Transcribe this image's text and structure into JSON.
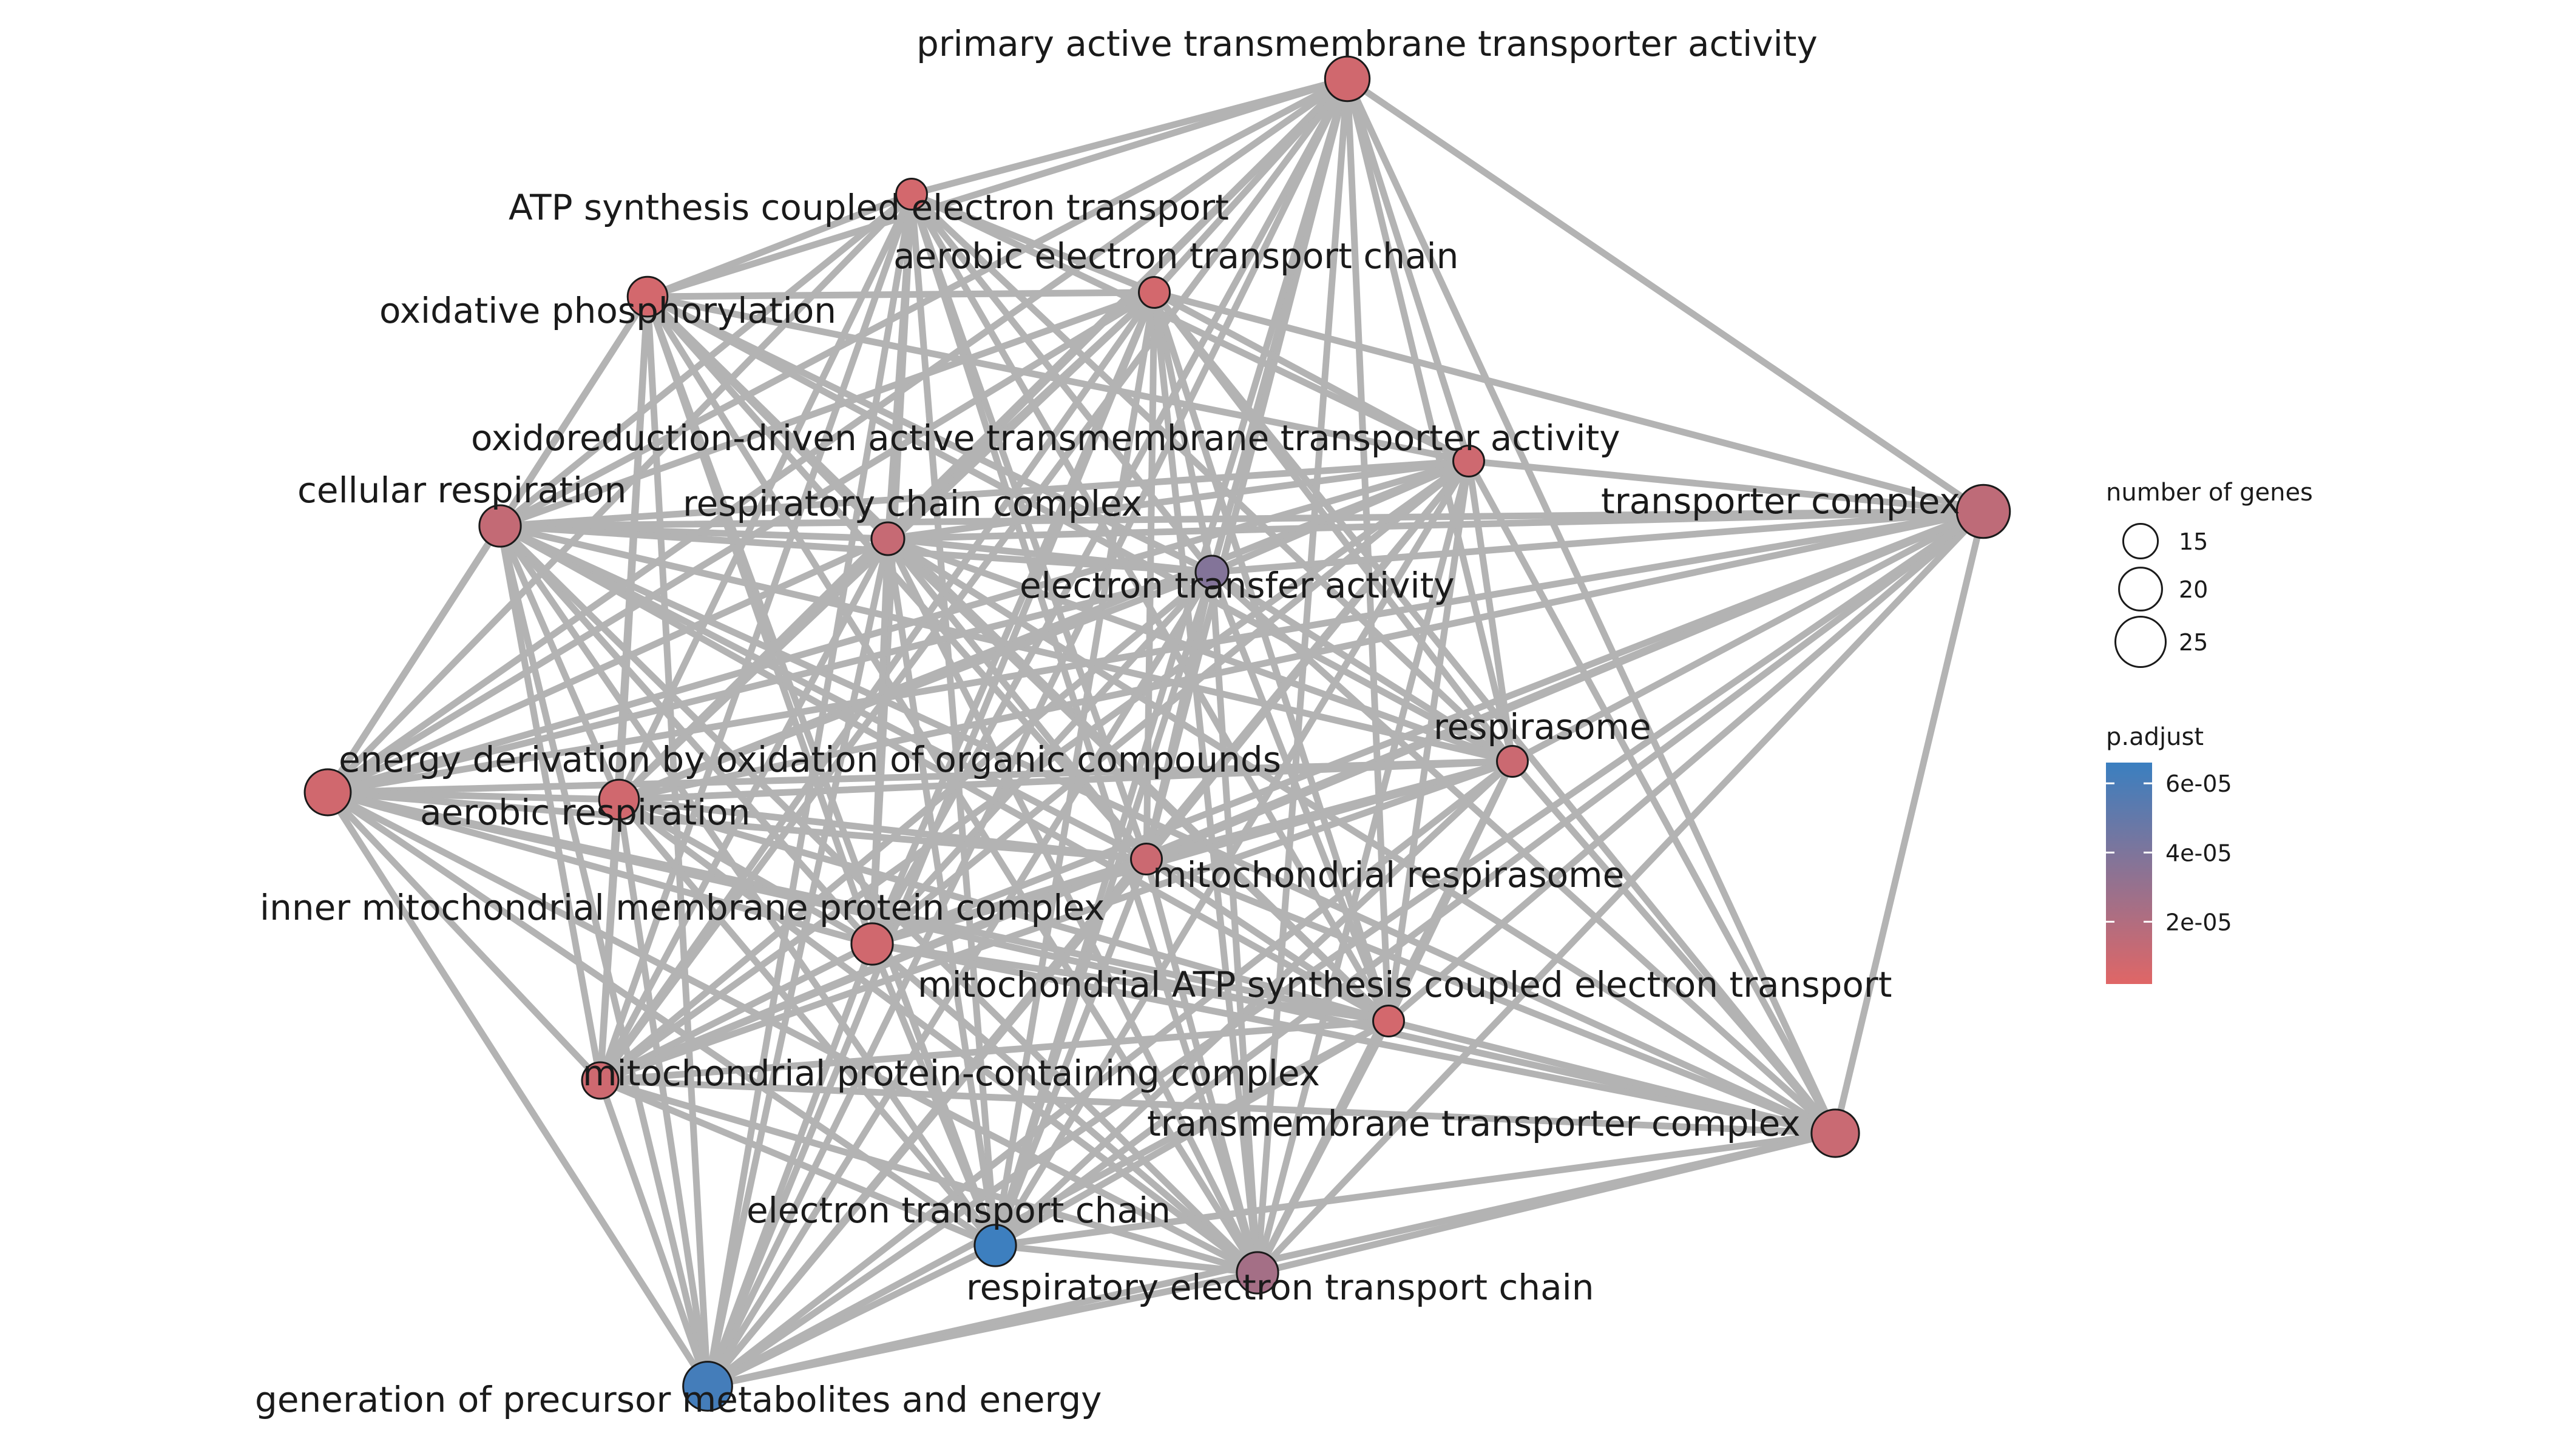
{
  "network": {
    "nodes": [
      {
        "id": "patta",
        "label": "primary active transmembrane transporter activity",
        "genes": 21,
        "p_adjust": 8e-06
      },
      {
        "id": "atpsyn",
        "label": "ATP synthesis coupled electron transport",
        "genes": 13,
        "p_adjust": 7e-06
      },
      {
        "id": "aetc",
        "label": "aerobic electron transport chain",
        "genes": 13,
        "p_adjust": 7e-06
      },
      {
        "id": "oxphos",
        "label": "oxidative phosphorylation",
        "genes": 18,
        "p_adjust": 7e-06
      },
      {
        "id": "odat",
        "label": "oxidoreduction-driven active transmembrane transporter activity",
        "genes": 13,
        "p_adjust": 9e-06
      },
      {
        "id": "cellresp",
        "label": "cellular respiration",
        "genes": 19,
        "p_adjust": 1.3e-05
      },
      {
        "id": "rcc",
        "label": "respiratory chain complex",
        "genes": 14,
        "p_adjust": 1.2e-05
      },
      {
        "id": "transcx",
        "label": "transporter complex",
        "genes": 27,
        "p_adjust": 1.5e-05
      },
      {
        "id": "eta",
        "label": "electron transfer activity",
        "genes": 14,
        "p_adjust": 3.8e-05
      },
      {
        "id": "respirasome",
        "label": "respirasome",
        "genes": 13,
        "p_adjust": 1e-05
      },
      {
        "id": "edoc",
        "label": "energy derivation by oxidation of organic compounds",
        "genes": 22,
        "p_adjust": 8e-06
      },
      {
        "id": "aeresp",
        "label": "aerobic respiration",
        "genes": 18,
        "p_adjust": 8e-06
      },
      {
        "id": "mitoresp",
        "label": "mitochondrial respirasome",
        "genes": 13,
        "p_adjust": 1e-05
      },
      {
        "id": "immpc",
        "label": "inner mitochondrial membrane protein complex",
        "genes": 19,
        "p_adjust": 8e-06
      },
      {
        "id": "mascet",
        "label": "mitochondrial ATP synthesis coupled electron transport",
        "genes": 13,
        "p_adjust": 7e-06
      },
      {
        "id": "mpcc",
        "label": "mitochondrial protein-containing complex",
        "genes": 16,
        "p_adjust": 9e-06
      },
      {
        "id": "tmtc",
        "label": "transmembrane transporter complex",
        "genes": 23,
        "p_adjust": 1.1e-05
      },
      {
        "id": "etc",
        "label": "electron transport chain",
        "genes": 19,
        "p_adjust": 6.5e-05
      },
      {
        "id": "retc",
        "label": "respiratory electron transport chain",
        "genes": 19,
        "p_adjust": 2.5e-05
      },
      {
        "id": "gpme",
        "label": "generation of precursor metabolites and energy",
        "genes": 24,
        "p_adjust": 6.2e-05
      }
    ],
    "edges": [
      [
        "patta",
        "atpsyn"
      ],
      [
        "patta",
        "aetc"
      ],
      [
        "patta",
        "oxphos"
      ],
      [
        "patta",
        "odat"
      ],
      [
        "patta",
        "cellresp"
      ],
      [
        "patta",
        "rcc"
      ],
      [
        "patta",
        "transcx"
      ],
      [
        "patta",
        "eta"
      ],
      [
        "patta",
        "respirasome"
      ],
      [
        "patta",
        "edoc"
      ],
      [
        "patta",
        "aeresp"
      ],
      [
        "patta",
        "mitoresp"
      ],
      [
        "patta",
        "immpc"
      ],
      [
        "patta",
        "mascet"
      ],
      [
        "patta",
        "mpcc"
      ],
      [
        "patta",
        "tmtc"
      ],
      [
        "patta",
        "etc"
      ],
      [
        "patta",
        "retc"
      ],
      [
        "patta",
        "gpme"
      ],
      [
        "atpsyn",
        "aetc"
      ],
      [
        "atpsyn",
        "oxphos"
      ],
      [
        "atpsyn",
        "odat"
      ],
      [
        "atpsyn",
        "cellresp"
      ],
      [
        "atpsyn",
        "rcc"
      ],
      [
        "atpsyn",
        "eta"
      ],
      [
        "atpsyn",
        "respirasome"
      ],
      [
        "atpsyn",
        "edoc"
      ],
      [
        "atpsyn",
        "aeresp"
      ],
      [
        "atpsyn",
        "mitoresp"
      ],
      [
        "atpsyn",
        "immpc"
      ],
      [
        "atpsyn",
        "mascet"
      ],
      [
        "atpsyn",
        "mpcc"
      ],
      [
        "atpsyn",
        "etc"
      ],
      [
        "atpsyn",
        "retc"
      ],
      [
        "atpsyn",
        "gpme"
      ],
      [
        "aetc",
        "oxphos"
      ],
      [
        "aetc",
        "odat"
      ],
      [
        "aetc",
        "cellresp"
      ],
      [
        "aetc",
        "rcc"
      ],
      [
        "aetc",
        "eta"
      ],
      [
        "aetc",
        "respirasome"
      ],
      [
        "aetc",
        "edoc"
      ],
      [
        "aetc",
        "aeresp"
      ],
      [
        "aetc",
        "mitoresp"
      ],
      [
        "aetc",
        "immpc"
      ],
      [
        "aetc",
        "mascet"
      ],
      [
        "aetc",
        "mpcc"
      ],
      [
        "aetc",
        "tmtc"
      ],
      [
        "aetc",
        "etc"
      ],
      [
        "aetc",
        "retc"
      ],
      [
        "aetc",
        "gpme"
      ],
      [
        "aetc",
        "transcx"
      ],
      [
        "oxphos",
        "odat"
      ],
      [
        "oxphos",
        "cellresp"
      ],
      [
        "oxphos",
        "rcc"
      ],
      [
        "oxphos",
        "eta"
      ],
      [
        "oxphos",
        "respirasome"
      ],
      [
        "oxphos",
        "edoc"
      ],
      [
        "oxphos",
        "aeresp"
      ],
      [
        "oxphos",
        "mitoresp"
      ],
      [
        "oxphos",
        "immpc"
      ],
      [
        "oxphos",
        "mascet"
      ],
      [
        "oxphos",
        "mpcc"
      ],
      [
        "oxphos",
        "etc"
      ],
      [
        "oxphos",
        "retc"
      ],
      [
        "oxphos",
        "gpme"
      ],
      [
        "odat",
        "cellresp"
      ],
      [
        "odat",
        "rcc"
      ],
      [
        "odat",
        "transcx"
      ],
      [
        "odat",
        "eta"
      ],
      [
        "odat",
        "respirasome"
      ],
      [
        "odat",
        "edoc"
      ],
      [
        "odat",
        "aeresp"
      ],
      [
        "odat",
        "mitoresp"
      ],
      [
        "odat",
        "immpc"
      ],
      [
        "odat",
        "mascet"
      ],
      [
        "odat",
        "mpcc"
      ],
      [
        "odat",
        "tmtc"
      ],
      [
        "odat",
        "etc"
      ],
      [
        "odat",
        "retc"
      ],
      [
        "odat",
        "gpme"
      ],
      [
        "cellresp",
        "rcc"
      ],
      [
        "cellresp",
        "transcx"
      ],
      [
        "cellresp",
        "eta"
      ],
      [
        "cellresp",
        "respirasome"
      ],
      [
        "cellresp",
        "edoc"
      ],
      [
        "cellresp",
        "aeresp"
      ],
      [
        "cellresp",
        "mitoresp"
      ],
      [
        "cellresp",
        "immpc"
      ],
      [
        "cellresp",
        "mascet"
      ],
      [
        "cellresp",
        "mpcc"
      ],
      [
        "cellresp",
        "tmtc"
      ],
      [
        "cellresp",
        "etc"
      ],
      [
        "cellresp",
        "retc"
      ],
      [
        "cellresp",
        "gpme"
      ],
      [
        "rcc",
        "transcx"
      ],
      [
        "rcc",
        "eta"
      ],
      [
        "rcc",
        "respirasome"
      ],
      [
        "rcc",
        "edoc"
      ],
      [
        "rcc",
        "aeresp"
      ],
      [
        "rcc",
        "mitoresp"
      ],
      [
        "rcc",
        "immpc"
      ],
      [
        "rcc",
        "mascet"
      ],
      [
        "rcc",
        "mpcc"
      ],
      [
        "rcc",
        "tmtc"
      ],
      [
        "rcc",
        "etc"
      ],
      [
        "rcc",
        "retc"
      ],
      [
        "rcc",
        "gpme"
      ],
      [
        "transcx",
        "eta"
      ],
      [
        "transcx",
        "respirasome"
      ],
      [
        "transcx",
        "edoc"
      ],
      [
        "transcx",
        "aeresp"
      ],
      [
        "transcx",
        "mitoresp"
      ],
      [
        "transcx",
        "immpc"
      ],
      [
        "transcx",
        "mascet"
      ],
      [
        "transcx",
        "mpcc"
      ],
      [
        "transcx",
        "tmtc"
      ],
      [
        "transcx",
        "etc"
      ],
      [
        "transcx",
        "retc"
      ],
      [
        "transcx",
        "gpme"
      ],
      [
        "eta",
        "respirasome"
      ],
      [
        "eta",
        "edoc"
      ],
      [
        "eta",
        "aeresp"
      ],
      [
        "eta",
        "mitoresp"
      ],
      [
        "eta",
        "immpc"
      ],
      [
        "eta",
        "mascet"
      ],
      [
        "eta",
        "mpcc"
      ],
      [
        "eta",
        "tmtc"
      ],
      [
        "eta",
        "etc"
      ],
      [
        "eta",
        "retc"
      ],
      [
        "eta",
        "gpme"
      ],
      [
        "respirasome",
        "edoc"
      ],
      [
        "respirasome",
        "aeresp"
      ],
      [
        "respirasome",
        "mitoresp"
      ],
      [
        "respirasome",
        "immpc"
      ],
      [
        "respirasome",
        "mascet"
      ],
      [
        "respirasome",
        "mpcc"
      ],
      [
        "respirasome",
        "tmtc"
      ],
      [
        "respirasome",
        "etc"
      ],
      [
        "respirasome",
        "retc"
      ],
      [
        "respirasome",
        "gpme"
      ],
      [
        "edoc",
        "aeresp"
      ],
      [
        "edoc",
        "mitoresp"
      ],
      [
        "edoc",
        "immpc"
      ],
      [
        "edoc",
        "mascet"
      ],
      [
        "edoc",
        "mpcc"
      ],
      [
        "edoc",
        "tmtc"
      ],
      [
        "edoc",
        "etc"
      ],
      [
        "edoc",
        "retc"
      ],
      [
        "edoc",
        "gpme"
      ],
      [
        "aeresp",
        "mitoresp"
      ],
      [
        "aeresp",
        "immpc"
      ],
      [
        "aeresp",
        "mascet"
      ],
      [
        "aeresp",
        "mpcc"
      ],
      [
        "aeresp",
        "etc"
      ],
      [
        "aeresp",
        "retc"
      ],
      [
        "aeresp",
        "gpme"
      ],
      [
        "mitoresp",
        "immpc"
      ],
      [
        "mitoresp",
        "mascet"
      ],
      [
        "mitoresp",
        "mpcc"
      ],
      [
        "mitoresp",
        "tmtc"
      ],
      [
        "mitoresp",
        "etc"
      ],
      [
        "mitoresp",
        "retc"
      ],
      [
        "mitoresp",
        "gpme"
      ],
      [
        "immpc",
        "mascet"
      ],
      [
        "immpc",
        "mpcc"
      ],
      [
        "immpc",
        "tmtc"
      ],
      [
        "immpc",
        "etc"
      ],
      [
        "immpc",
        "retc"
      ],
      [
        "immpc",
        "gpme"
      ],
      [
        "mascet",
        "mpcc"
      ],
      [
        "mascet",
        "tmtc"
      ],
      [
        "mascet",
        "etc"
      ],
      [
        "mascet",
        "retc"
      ],
      [
        "mascet",
        "gpme"
      ],
      [
        "mpcc",
        "tmtc"
      ],
      [
        "mpcc",
        "etc"
      ],
      [
        "mpcc",
        "retc"
      ],
      [
        "mpcc",
        "gpme"
      ],
      [
        "tmtc",
        "etc"
      ],
      [
        "tmtc",
        "retc"
      ],
      [
        "tmtc",
        "gpme"
      ],
      [
        "etc",
        "retc"
      ],
      [
        "etc",
        "gpme"
      ],
      [
        "retc",
        "gpme"
      ]
    ]
  },
  "legend": {
    "size_title": "number of genes",
    "size_items": [
      {
        "label": "15",
        "value": 15
      },
      {
        "label": "20",
        "value": 20
      },
      {
        "label": "25",
        "value": 25
      }
    ],
    "color_title": "p.adjust",
    "color_ticks": [
      {
        "label": "6e-05",
        "value": 6e-05
      },
      {
        "label": "4e-05",
        "value": 4e-05
      },
      {
        "label": "2e-05",
        "value": 2e-05
      }
    ],
    "color_range": [
      2e-06,
      6.6e-05
    ],
    "color_low": "#e06666",
    "color_high": "#3a7fc0"
  },
  "colors": {
    "edge": "#b3b3b3",
    "node_stroke": "#1a1a1a"
  }
}
